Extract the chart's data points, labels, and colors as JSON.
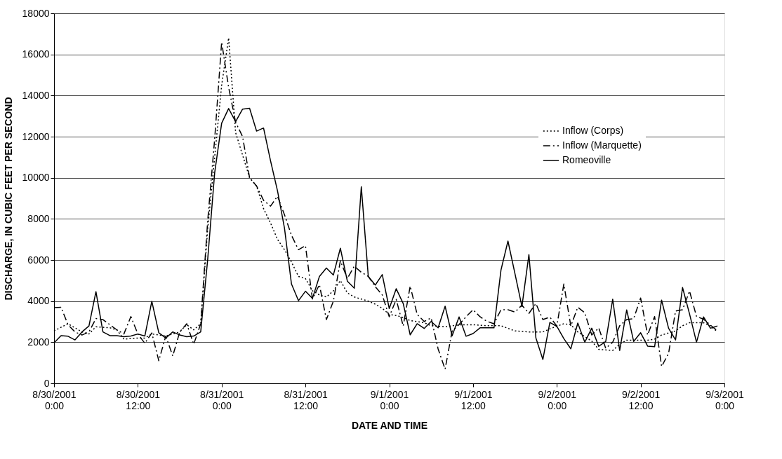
{
  "chart_data": {
    "type": "line",
    "xlabel": "DATE AND TIME",
    "ylabel": "DISCHARGE, IN CUBIC FEET PER SECOND",
    "xlim": [
      "2001-08-30T00:00",
      "2001-09-03T00:00"
    ],
    "xticks": [
      {
        "value": "2001-08-30T00:00",
        "label": "8/30/2001\n0:00"
      },
      {
        "value": "2001-08-30T12:00",
        "label": "8/30/2001\n12:00"
      },
      {
        "value": "2001-08-31T00:00",
        "label": "8/31/2001\n0:00"
      },
      {
        "value": "2001-08-31T12:00",
        "label": "8/31/2001\n12:00"
      },
      {
        "value": "2001-09-01T00:00",
        "label": "9/1/2001\n0:00"
      },
      {
        "value": "2001-09-01T12:00",
        "label": "9/1/2001\n12:00"
      },
      {
        "value": "2001-09-02T00:00",
        "label": "9/2/2001\n0:00"
      },
      {
        "value": "2001-09-02T12:00",
        "label": "9/2/2001\n12:00"
      },
      {
        "value": "2001-09-03T00:00",
        "label": "9/3/2001\n0:00"
      }
    ],
    "ylim": [
      0,
      18000
    ],
    "yticks": [
      0,
      2000,
      4000,
      6000,
      8000,
      10000,
      12000,
      14000,
      16000,
      18000
    ],
    "x": [
      "2001-08-30T00:00",
      "2001-08-30T01:00",
      "2001-08-30T02:00",
      "2001-08-30T03:00",
      "2001-08-30T04:00",
      "2001-08-30T05:00",
      "2001-08-30T06:00",
      "2001-08-30T07:00",
      "2001-08-30T08:00",
      "2001-08-30T09:00",
      "2001-08-30T10:00",
      "2001-08-30T11:00",
      "2001-08-30T12:00",
      "2001-08-30T13:00",
      "2001-08-30T14:00",
      "2001-08-30T15:00",
      "2001-08-30T16:00",
      "2001-08-30T17:00",
      "2001-08-30T18:00",
      "2001-08-30T19:00",
      "2001-08-30T20:00",
      "2001-08-30T21:00",
      "2001-08-30T22:00",
      "2001-08-30T23:00",
      "2001-08-31T00:00",
      "2001-08-31T01:00",
      "2001-08-31T02:00",
      "2001-08-31T03:00",
      "2001-08-31T04:00",
      "2001-08-31T05:00",
      "2001-08-31T06:00",
      "2001-08-31T07:00",
      "2001-08-31T08:00",
      "2001-08-31T09:00",
      "2001-08-31T10:00",
      "2001-08-31T11:00",
      "2001-08-31T12:00",
      "2001-08-31T13:00",
      "2001-08-31T14:00",
      "2001-08-31T15:00",
      "2001-08-31T16:00",
      "2001-08-31T17:00",
      "2001-08-31T18:00",
      "2001-08-31T19:00",
      "2001-08-31T20:00",
      "2001-08-31T21:00",
      "2001-08-31T22:00",
      "2001-08-31T23:00",
      "2001-09-01T00:00",
      "2001-09-01T01:00",
      "2001-09-01T02:00",
      "2001-09-01T03:00",
      "2001-09-01T04:00",
      "2001-09-01T05:00",
      "2001-09-01T06:00",
      "2001-09-01T07:00",
      "2001-09-01T08:00",
      "2001-09-01T09:00",
      "2001-09-01T10:00",
      "2001-09-01T11:00",
      "2001-09-01T12:00",
      "2001-09-01T13:00",
      "2001-09-01T14:00",
      "2001-09-01T15:00",
      "2001-09-01T16:00",
      "2001-09-01T17:00",
      "2001-09-01T18:00",
      "2001-09-01T19:00",
      "2001-09-01T20:00",
      "2001-09-01T21:00",
      "2001-09-01T22:00",
      "2001-09-01T23:00",
      "2001-09-02T00:00",
      "2001-09-02T01:00",
      "2001-09-02T02:00",
      "2001-09-02T03:00",
      "2001-09-02T04:00",
      "2001-09-02T05:00",
      "2001-09-02T06:00",
      "2001-09-02T07:00",
      "2001-09-02T08:00",
      "2001-09-02T09:00",
      "2001-09-02T10:00",
      "2001-09-02T11:00",
      "2001-09-02T12:00",
      "2001-09-02T13:00",
      "2001-09-02T14:00",
      "2001-09-02T15:00",
      "2001-09-02T16:00",
      "2001-09-02T17:00",
      "2001-09-02T18:00",
      "2001-09-02T19:00",
      "2001-09-02T20:00",
      "2001-09-02T21:00",
      "2001-09-02T22:00",
      "2001-09-02T23:00"
    ],
    "grid": "y",
    "legend": "right",
    "marker": "none",
    "series": [
      {
        "name": "Inflow (Corps)",
        "color": "#000000",
        "line_style": "dotted",
        "x": [
          "2001-08-30T00:00",
          "2001-08-30T02:00",
          "2001-08-30T04:00",
          "2001-08-30T05:00",
          "2001-08-30T06:00",
          "2001-08-30T08:00",
          "2001-08-30T09:00",
          "2001-08-30T10:00",
          "2001-08-30T12:00",
          "2001-08-30T13:00",
          "2001-08-30T14:00",
          "2001-08-30T16:00",
          "2001-08-30T18:00",
          "2001-08-30T19:00",
          "2001-08-30T20:00",
          "2001-08-30T21:00",
          "2001-08-30T22:00",
          "2001-08-30T23:00",
          "2001-08-31T00:00",
          "2001-08-31T01:00",
          "2001-08-31T02:00",
          "2001-08-31T04:00",
          "2001-08-31T05:00",
          "2001-08-31T06:00",
          "2001-08-31T07:00",
          "2001-08-31T08:00",
          "2001-08-31T09:00",
          "2001-08-31T10:00",
          "2001-08-31T11:00",
          "2001-08-31T12:00",
          "2001-08-31T13:00",
          "2001-08-31T14:00",
          "2001-08-31T15:00",
          "2001-08-31T16:00",
          "2001-08-31T17:00",
          "2001-08-31T18:00",
          "2001-08-31T19:00",
          "2001-08-31T20:00",
          "2001-08-31T21:00",
          "2001-08-31T22:00",
          "2001-08-31T23:00",
          "2001-09-01T00:00",
          "2001-09-01T01:00",
          "2001-09-01T02:00",
          "2001-09-01T03:00",
          "2001-09-01T05:00",
          "2001-09-01T06:00",
          "2001-09-01T08:00",
          "2001-09-01T10:00",
          "2001-09-01T12:00",
          "2001-09-01T14:00",
          "2001-09-01T16:00",
          "2001-09-01T18:00",
          "2001-09-01T20:00",
          "2001-09-01T22:00",
          "2001-09-01T23:00",
          "2001-09-02T01:00",
          "2001-09-02T02:00",
          "2001-09-02T03:00",
          "2001-09-02T05:00",
          "2001-09-02T06:00",
          "2001-09-02T08:00",
          "2001-09-02T09:00",
          "2001-09-02T10:00",
          "2001-09-02T11:00",
          "2001-09-02T13:00",
          "2001-09-02T14:00",
          "2001-09-02T15:00",
          "2001-09-02T17:00",
          "2001-09-02T18:00",
          "2001-09-02T19:00",
          "2001-09-02T21:00",
          "2001-09-02T22:00",
          "2001-09-02T23:00"
        ],
        "values": [
          2550,
          2900,
          2500,
          2400,
          2750,
          2700,
          2600,
          2150,
          2200,
          2200,
          2400,
          2300,
          2500,
          2850,
          2600,
          2900,
          7500,
          11000,
          14500,
          16800,
          12200,
          10000,
          9600,
          8500,
          7800,
          7000,
          6500,
          5900,
          5200,
          5100,
          4500,
          4300,
          4200,
          4500,
          5000,
          4400,
          4200,
          4100,
          4000,
          3850,
          3650,
          3350,
          3300,
          3200,
          3050,
          2950,
          2800,
          2750,
          2850,
          2850,
          2800,
          2800,
          2550,
          2500,
          2500,
          2650,
          2900,
          2850,
          2500,
          2050,
          1650,
          1600,
          1900,
          2100,
          2100,
          2100,
          2150,
          2350,
          2550,
          2800,
          2950,
          2950,
          2800,
          2500
        ]
      },
      {
        "name": "Inflow (Marquette)",
        "color": "#000000",
        "line_style": "dashdot",
        "values": [
          3680,
          3700,
          2850,
          2500,
          2350,
          2500,
          3150,
          3100,
          2850,
          2600,
          2400,
          3250,
          2400,
          1950,
          2450,
          1100,
          2300,
          1330,
          2500,
          2900,
          1900,
          2900,
          7900,
          11880,
          16600,
          14400,
          12700,
          12000,
          10000,
          9600,
          8900,
          8620,
          9100,
          8200,
          7200,
          6500,
          6700,
          4100,
          4800,
          3100,
          4000,
          5960,
          5100,
          5700,
          5400,
          5200,
          4700,
          4300,
          3240,
          4080,
          2790,
          4730,
          3350,
          3010,
          3180,
          1670,
          690,
          2540,
          2860,
          3240,
          3580,
          3240,
          3010,
          2900,
          3580,
          3580,
          3470,
          3800,
          3400,
          3880,
          3100,
          3220,
          2790,
          4830,
          2790,
          3700,
          3430,
          2350,
          2700,
          1700,
          2000,
          2800,
          3100,
          3150,
          4150,
          2350,
          3250,
          820,
          1450,
          3520,
          3580,
          4490,
          3250,
          3120,
          2830,
          2560
        ]
      },
      {
        "name": "Romeoville",
        "color": "#000000",
        "line_style": "solid",
        "values": [
          1970,
          2320,
          2290,
          2110,
          2500,
          2790,
          4460,
          2500,
          2320,
          2320,
          2270,
          2300,
          2400,
          2300,
          3990,
          2460,
          2200,
          2500,
          2350,
          2270,
          2300,
          2500,
          6020,
          10240,
          12650,
          13370,
          12730,
          13340,
          13380,
          12270,
          12420,
          10830,
          9360,
          7550,
          4830,
          4020,
          4480,
          4130,
          5200,
          5610,
          5270,
          6570,
          4970,
          4630,
          9560,
          5200,
          4780,
          5290,
          3640,
          4600,
          3880,
          2360,
          2900,
          2670,
          3010,
          2700,
          3750,
          2310,
          3230,
          2290,
          2420,
          2700,
          2700,
          2700,
          5510,
          6920,
          5340,
          3740,
          6260,
          2210,
          1160,
          2960,
          2770,
          2180,
          1680,
          2930,
          2000,
          2680,
          1800,
          2030,
          4090,
          1600,
          3570,
          2040,
          2460,
          1810,
          1780,
          4050,
          2680,
          2110,
          4660,
          3380,
          2000,
          3230,
          2680,
          2790
        ]
      }
    ]
  }
}
